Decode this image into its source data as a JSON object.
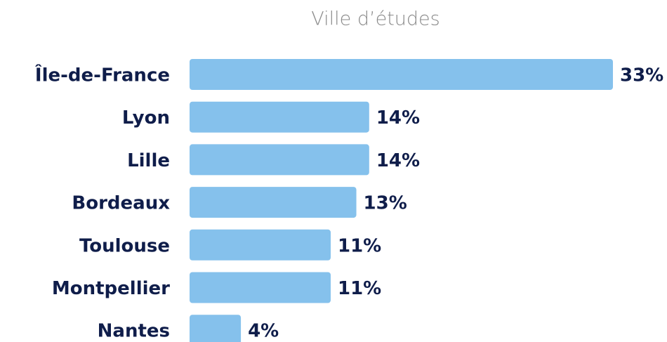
{
  "chart_data": {
    "type": "bar",
    "orientation": "horizontal",
    "title": "Ville d’études",
    "categories": [
      "Île-de-France",
      "Lyon",
      "Lille",
      "Bordeaux",
      "Toulouse",
      "Montpellier",
      "Nantes"
    ],
    "values": [
      33,
      14,
      14,
      13,
      11,
      11,
      4
    ],
    "value_labels": [
      "33%",
      "14%",
      "14%",
      "13%",
      "11%",
      "11%",
      "4%"
    ],
    "color": "#85c1ec"
  }
}
